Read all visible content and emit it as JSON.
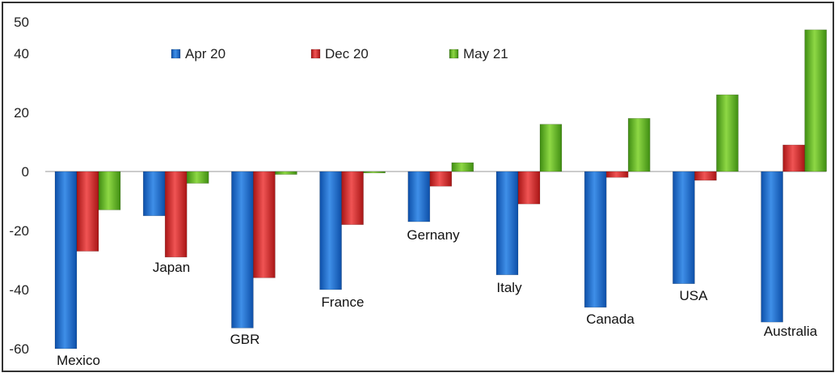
{
  "chart_data": {
    "type": "bar",
    "categories": [
      "Mexico",
      "Japan",
      "GBR",
      "France",
      "Gernany",
      "Italy",
      "Canada",
      "USA",
      "Australia"
    ],
    "series": [
      {
        "name": "Apr 20",
        "color": "#1f6fd1",
        "values": [
          -60,
          -15,
          -53,
          -40,
          -17,
          -35,
          -46,
          -38,
          -51
        ]
      },
      {
        "name": "Dec 20",
        "color": "#e02a2a",
        "values": [
          -27,
          -29,
          -36,
          -18,
          -5,
          -11,
          -2,
          -3,
          9
        ]
      },
      {
        "name": "May 21",
        "color": "#6cbf2a",
        "values": [
          -13,
          -4,
          -1,
          -0.5,
          3,
          16,
          18,
          26,
          48
        ]
      }
    ],
    "yticks": [
      50,
      40,
      20,
      0,
      -20,
      -40,
      -60
    ],
    "ylim": [
      -62,
      50
    ],
    "legend_position": "top",
    "grid": false,
    "title": "",
    "xlabel": "",
    "ylabel": ""
  }
}
